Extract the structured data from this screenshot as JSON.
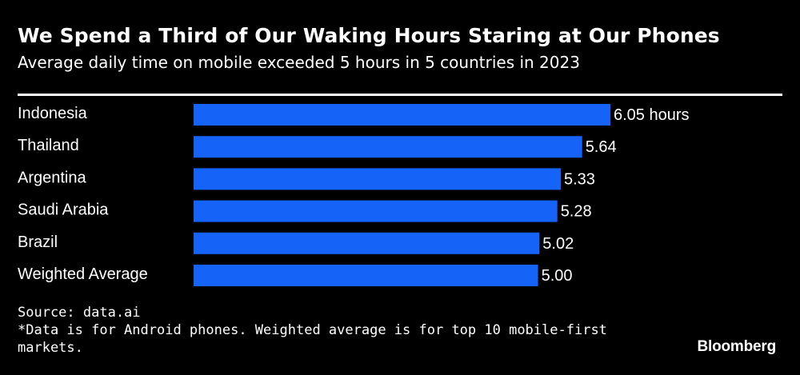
{
  "header": {
    "title": "We Spend a Third of Our Waking Hours Staring at Our Phones",
    "subtitle": "Average daily time on mobile exceeded 5 hours in 5 countries in 2023"
  },
  "footer": {
    "source": "Source: data.ai",
    "note": "*Data is for Android phones. Weighted average is for top 10 mobile-first markets.",
    "brand": "Bloomberg"
  },
  "colors": {
    "bar": "#1663f7",
    "background": "#000000",
    "text": "#ffffff"
  },
  "chart_data": {
    "type": "bar",
    "orientation": "horizontal",
    "title": "We Spend a Third of Our Waking Hours Staring at Our Phones",
    "subtitle": "Average daily time on mobile exceeded 5 hours in 5 countries in 2023",
    "categories": [
      "Indonesia",
      "Thailand",
      "Argentina",
      "Saudi Arabia",
      "Brazil",
      "Weighted Average"
    ],
    "values": [
      6.05,
      5.64,
      5.33,
      5.28,
      5.02,
      5.0
    ],
    "value_labels": [
      "6.05 hours",
      "5.64",
      "5.33",
      "5.28",
      "5.02",
      "5.00"
    ],
    "xlabel": "",
    "ylabel": "",
    "xlim": [
      0,
      6.05
    ],
    "grid": false,
    "legend": "none"
  }
}
